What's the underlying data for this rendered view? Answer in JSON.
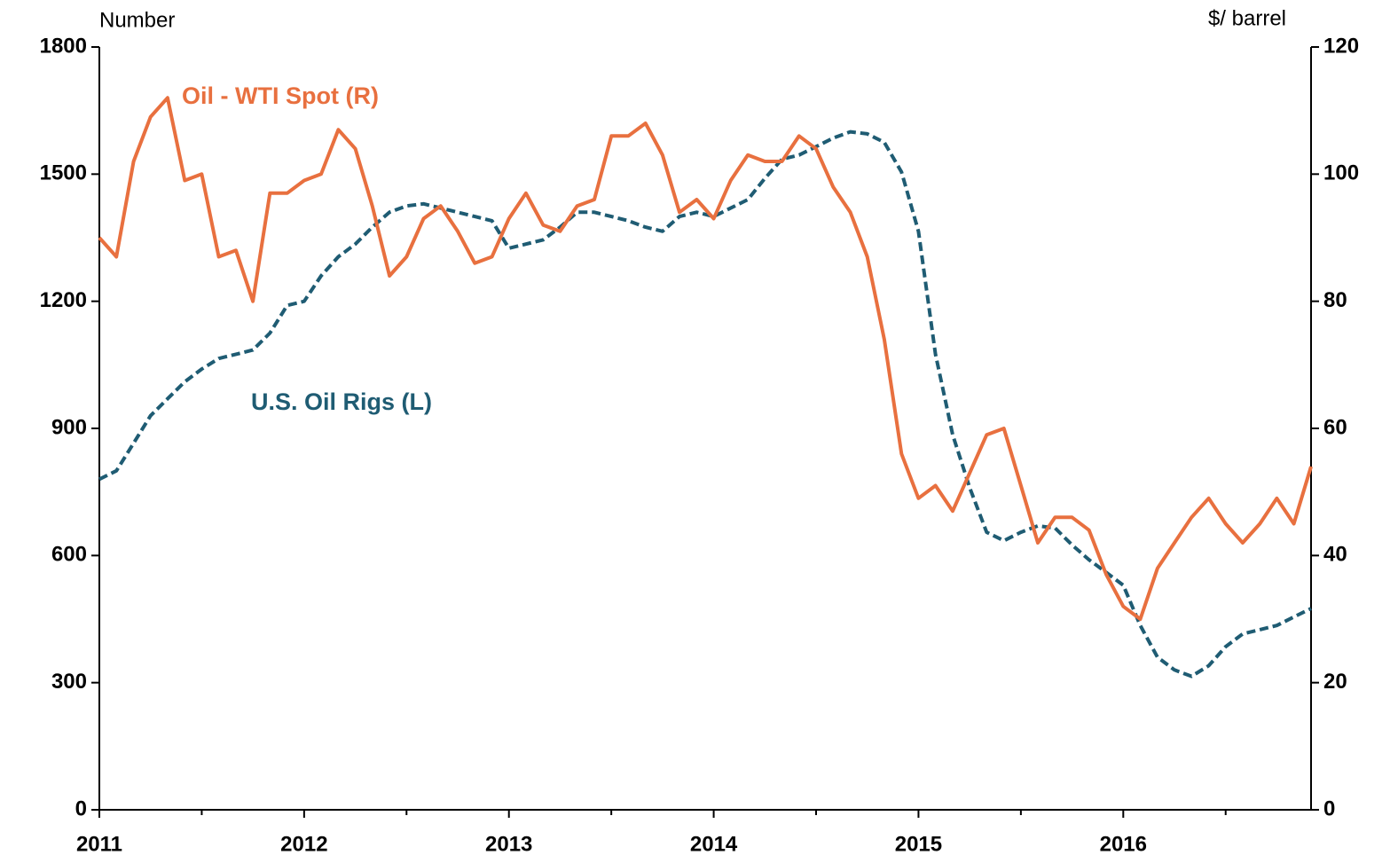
{
  "chart_data": {
    "type": "line",
    "y_label": "Number",
    "y2_label": "$/ barrel",
    "x": [
      2011,
      2011.083,
      2011.167,
      2011.25,
      2011.333,
      2011.417,
      2011.5,
      2011.583,
      2011.667,
      2011.75,
      2011.833,
      2011.917,
      2012,
      2012.083,
      2012.167,
      2012.25,
      2012.333,
      2012.417,
      2012.5,
      2012.583,
      2012.667,
      2012.75,
      2012.833,
      2012.917,
      2013,
      2013.083,
      2013.167,
      2013.25,
      2013.333,
      2013.417,
      2013.5,
      2013.583,
      2013.667,
      2013.75,
      2013.833,
      2013.917,
      2014,
      2014.083,
      2014.167,
      2014.25,
      2014.333,
      2014.417,
      2014.5,
      2014.583,
      2014.667,
      2014.75,
      2014.833,
      2014.917,
      2015,
      2015.083,
      2015.167,
      2015.25,
      2015.333,
      2015.417,
      2015.5,
      2015.583,
      2015.667,
      2015.75,
      2015.833,
      2015.917,
      2016,
      2016.083,
      2016.167,
      2016.25,
      2016.333,
      2016.417,
      2016.5,
      2016.583,
      2016.667,
      2016.75,
      2016.833,
      2016.917
    ],
    "series": [
      {
        "name": "Oil - WTI Spot (R)",
        "color": "#e8703f",
        "axis": "y2",
        "dash": false,
        "values": [
          90,
          87,
          102,
          109,
          112,
          99,
          100,
          87,
          88,
          80,
          97,
          97,
          99,
          100,
          107,
          104,
          95,
          84,
          87,
          93,
          95,
          91,
          86,
          87,
          93,
          97,
          92,
          91,
          95,
          96,
          106,
          106,
          108,
          103,
          94,
          96,
          93,
          99,
          103,
          102,
          102,
          106,
          104,
          98,
          94,
          87,
          74,
          56,
          49,
          51,
          47,
          53,
          59,
          60,
          51,
          42,
          46,
          46,
          44,
          37,
          32,
          30,
          38,
          42,
          46,
          49,
          45,
          42,
          45,
          49,
          45,
          54
        ]
      },
      {
        "name": "U.S. Oil Rigs (L)",
        "color": "#1f5c73",
        "axis": "y",
        "dash": true,
        "values": [
          780,
          800,
          865,
          930,
          970,
          1010,
          1040,
          1065,
          1075,
          1085,
          1125,
          1190,
          1200,
          1260,
          1305,
          1335,
          1375,
          1410,
          1425,
          1430,
          1420,
          1410,
          1400,
          1390,
          1325,
          1335,
          1345,
          1375,
          1410,
          1410,
          1400,
          1390,
          1375,
          1365,
          1400,
          1410,
          1400,
          1420,
          1440,
          1490,
          1535,
          1545,
          1565,
          1585,
          1600,
          1595,
          1575,
          1505,
          1365,
          1075,
          885,
          760,
          655,
          635,
          655,
          670,
          665,
          625,
          590,
          560,
          530,
          435,
          360,
          330,
          315,
          340,
          385,
          415,
          425,
          435,
          455,
          475
        ]
      }
    ],
    "xlim": [
      2011,
      2016.917
    ],
    "xticks": [
      2011,
      2012,
      2013,
      2014,
      2015,
      2016
    ],
    "xminor_ticks": [
      2011.5,
      2012.5,
      2013.5,
      2014.5,
      2015.5,
      2016.5
    ],
    "ylim": [
      0,
      1800
    ],
    "yticks": [
      0,
      300,
      600,
      900,
      1200,
      1500,
      1800
    ],
    "y2lim": [
      0,
      120
    ],
    "y2ticks": [
      0,
      20,
      40,
      60,
      80,
      100,
      120
    ],
    "grid": false
  }
}
